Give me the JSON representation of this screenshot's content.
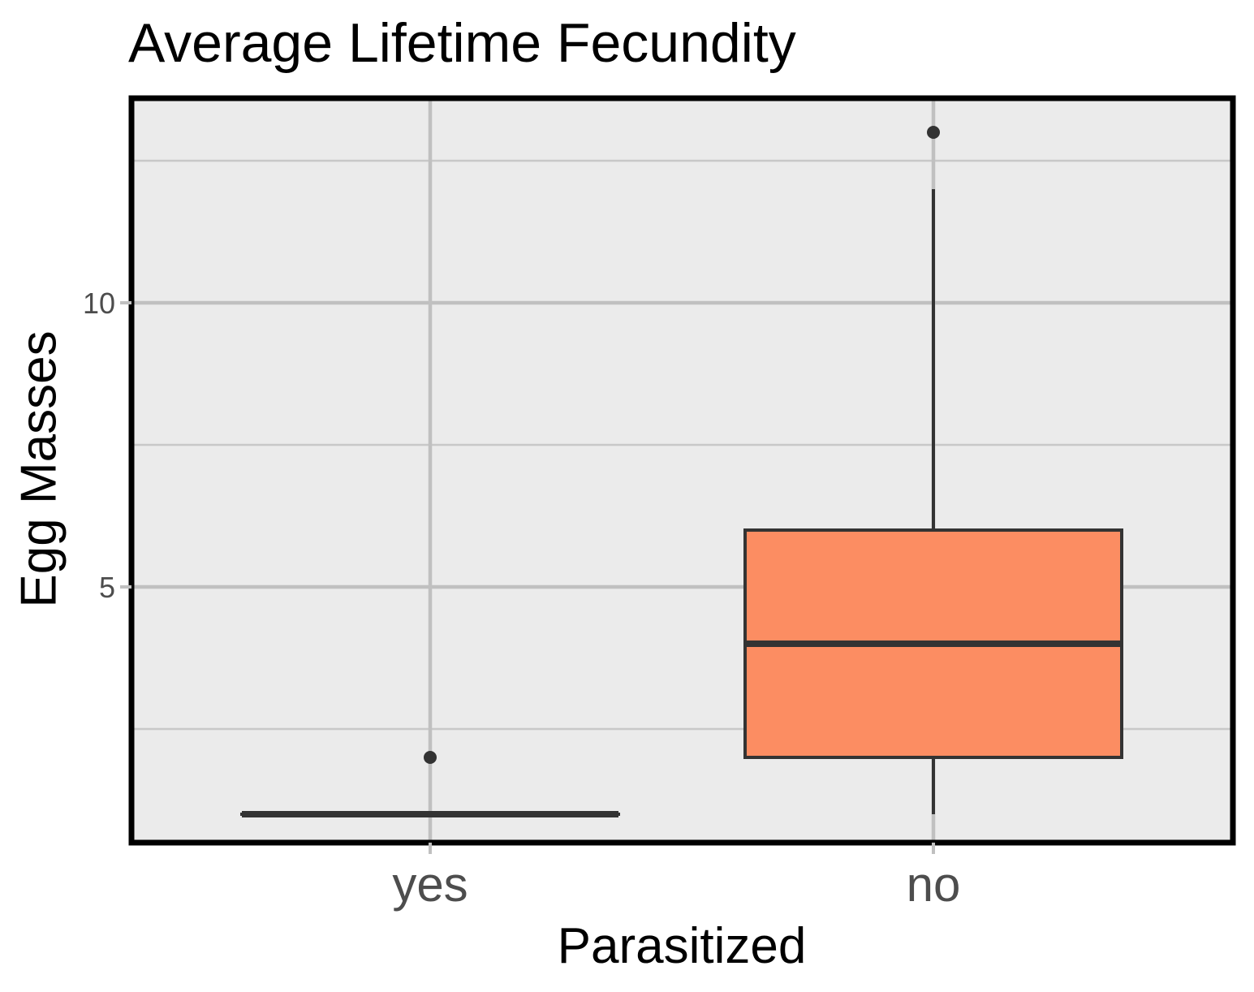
{
  "chart_data": {
    "type": "box",
    "title": "Average Lifetime Fecundity",
    "xlabel": "Parasitized",
    "ylabel": "Egg Masses",
    "categories": [
      "yes",
      "no"
    ],
    "ylim": [
      0.5,
      13.6
    ],
    "y_ticks": [
      5,
      10
    ],
    "y_tick_labels": [
      "5",
      "10"
    ],
    "grid": true,
    "boxes": [
      {
        "category": "yes",
        "min": 1,
        "q1": 1,
        "median": 1,
        "q3": 1,
        "max": 1,
        "outliers": [
          2
        ],
        "fill": "#fc8d62"
      },
      {
        "category": "no",
        "min": 1,
        "q1": 2,
        "median": 4,
        "q3": 6,
        "max": 12,
        "outliers": [
          13
        ],
        "fill": "#fc8d62"
      }
    ]
  },
  "colors": {
    "panel_background": "#ebebeb",
    "grid_major": "#c0c0c0",
    "grid_minor": "#c8c8c8",
    "box_outline": "#333333",
    "border": "#000000",
    "tick_text": "#4d4d4d"
  }
}
